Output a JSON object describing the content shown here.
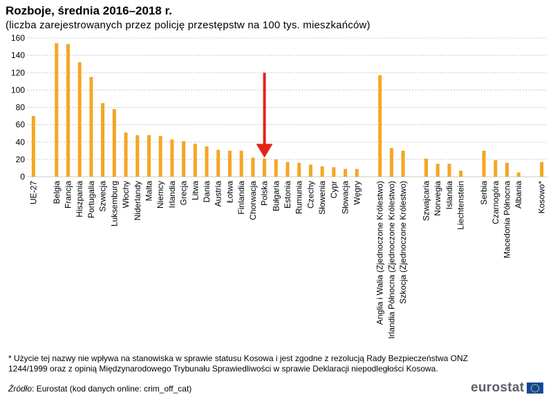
{
  "header": {
    "title": "Rozboje, średnia 2016–2018 r.",
    "subtitle": "(liczba zarejestrowanych przez policję przestępstw na 100 tys. mieszkańców)"
  },
  "footnote": "* Użycie tej nazwy nie wpływa na stanowiska w sprawie statusu Kosowa i jest zgodne z rezolucją Rady Bezpieczeństwa ONZ 1244/1999 oraz z opinią Międzynarodowego Trybunału Sprawiedliwości w sprawie Deklaracji niepodległości Kosowa.",
  "source": {
    "label": "Źródło",
    "text": ": Eurostat (kod danych online: crim_off_cat)"
  },
  "logo": {
    "text": "eurostat",
    "flag_icon": "eu-flag-icon"
  },
  "colors": {
    "bar": "#f5a623",
    "arrow": "#e2231a",
    "grid": "#c8c8c8"
  },
  "chart_data": {
    "type": "bar",
    "title": "Rozboje, średnia 2016–2018 r.",
    "subtitle": "(liczba zarejestrowanych przez policję przestępstw na 100 tys. mieszkańców)",
    "ylim": [
      0,
      160
    ],
    "yticks": [
      0,
      20,
      40,
      60,
      80,
      100,
      120,
      140,
      160
    ],
    "grid": true,
    "highlight": {
      "category": "Polska",
      "marker": "arrow-down"
    },
    "groups": [
      {
        "categories": [
          "UE-27"
        ],
        "values": [
          70
        ]
      },
      {
        "categories": [
          "Belgia",
          "Francja",
          "Hiszpania",
          "Portugalia",
          "Szwecja",
          "Luksemburg",
          "Włochy",
          "Niderlandy",
          "Malta",
          "Niemcy",
          "Irlandia",
          "Grecja",
          "Litwa",
          "Dania",
          "Austria",
          "Łotwa",
          "Finlandia",
          "Chorwacja",
          "Polska",
          "Bułgaria",
          "Estonia",
          "Rumunia",
          "Czechy",
          "Słowenia",
          "Cypr",
          "Słowacja",
          "Węgry"
        ],
        "values": [
          154,
          153,
          132,
          115,
          85,
          78,
          51,
          48,
          48,
          47,
          43,
          41,
          38,
          35,
          31,
          30,
          30,
          22,
          21,
          20,
          17,
          16,
          14,
          12,
          11,
          9,
          9
        ]
      },
      {
        "categories": [
          "Anglia i Walia (Zjednoczone Królestwo)",
          "Irlandia Północna (Zjednoczone Królestwo)",
          "Szkocja (Zjednoczone Królestwo)"
        ],
        "values": [
          117,
          33,
          30
        ]
      },
      {
        "categories": [
          "Szwajcaria",
          "Norwegia",
          "Islandia",
          "Liechtenstein"
        ],
        "values": [
          21,
          15,
          15,
          7
        ]
      },
      {
        "categories": [
          "Serbia",
          "Czarnogóra",
          "Macedonia Północna",
          "Albania"
        ],
        "values": [
          30,
          19,
          16,
          5
        ]
      },
      {
        "categories": [
          "Kosowo*"
        ],
        "values": [
          17
        ]
      }
    ]
  }
}
